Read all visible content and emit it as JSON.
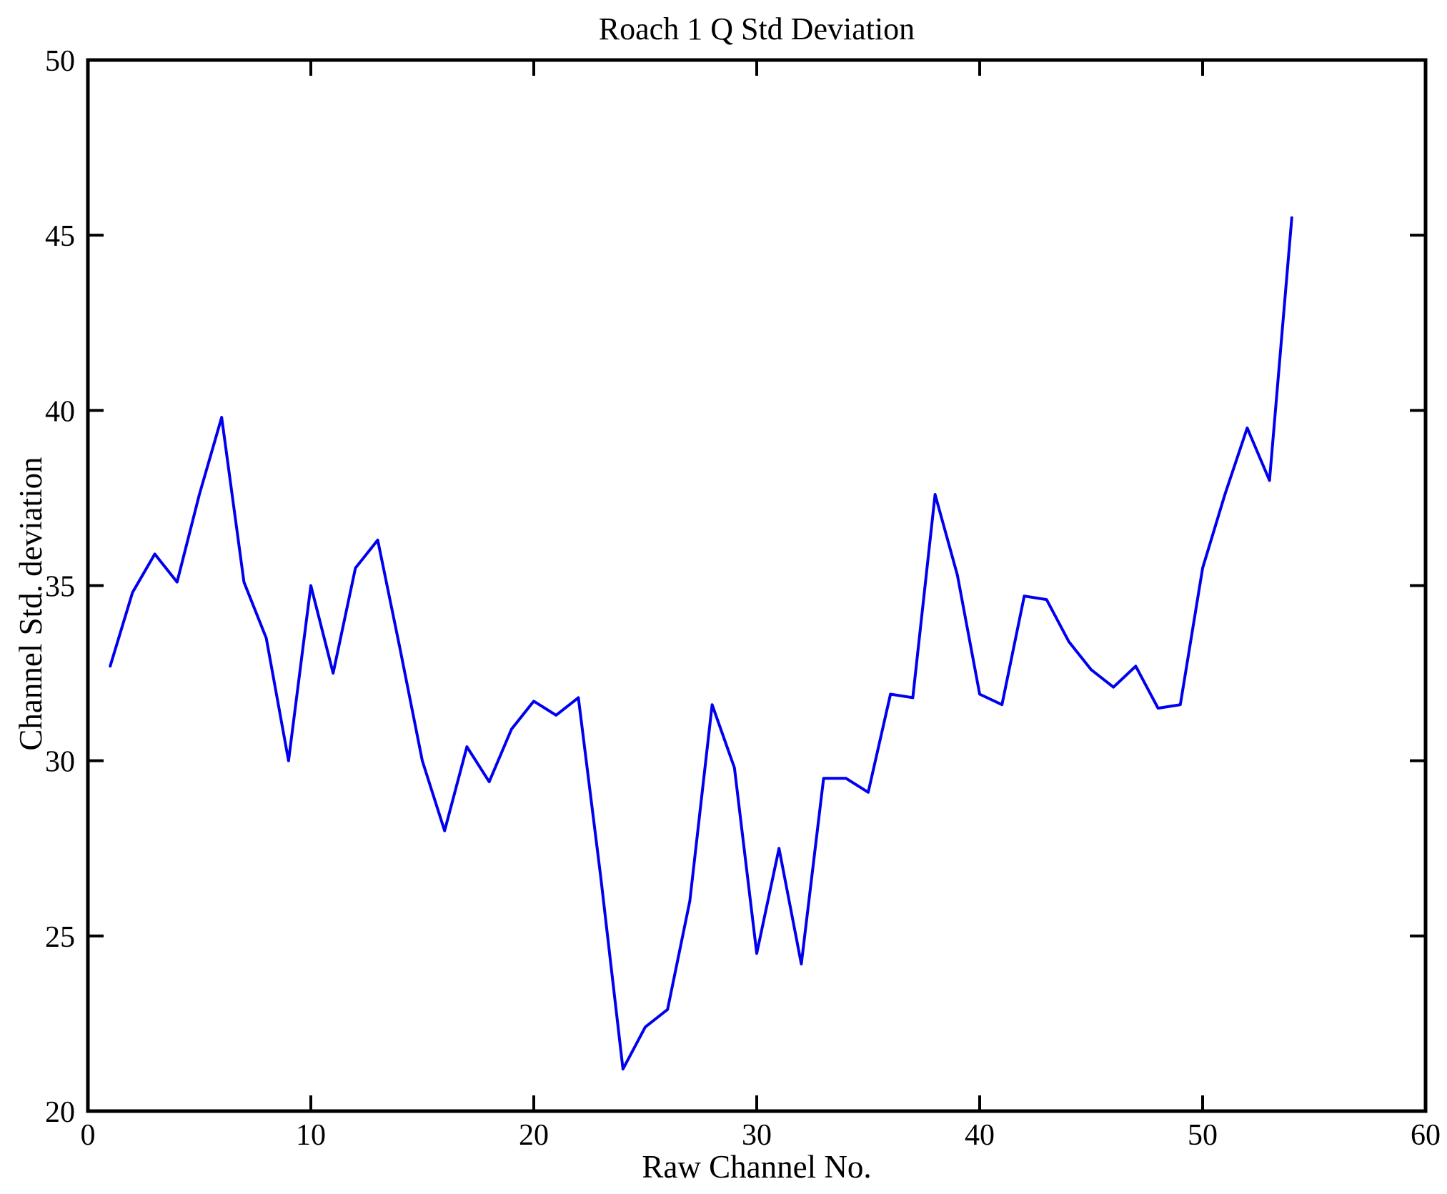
{
  "chart_data": {
    "type": "line",
    "title": "Roach 1 Q Std Deviation",
    "xlabel": "Raw Channel No.",
    "ylabel": "Channel Std. deviation",
    "xlim": [
      0,
      60
    ],
    "ylim": [
      20,
      50
    ],
    "x_ticks": [
      0,
      10,
      20,
      30,
      40,
      50,
      60
    ],
    "y_ticks": [
      20,
      25,
      30,
      35,
      40,
      45,
      50
    ],
    "grid": false,
    "legend": "none",
    "line_color": "#0000EE",
    "axis_color": "#000000",
    "x": [
      1,
      2,
      3,
      4,
      5,
      6,
      7,
      8,
      9,
      10,
      11,
      12,
      13,
      14,
      15,
      16,
      17,
      18,
      19,
      20,
      21,
      22,
      23,
      24,
      25,
      26,
      27,
      28,
      29,
      30,
      31,
      32,
      33,
      34,
      35,
      36,
      37,
      38,
      39,
      40,
      41,
      42,
      43,
      44,
      45,
      46,
      47,
      48,
      49,
      50,
      51,
      52,
      53,
      54
    ],
    "y": [
      32.7,
      34.8,
      35.9,
      35.1,
      37.6,
      39.8,
      35.1,
      33.5,
      30.0,
      35.0,
      32.5,
      35.5,
      36.3,
      33.2,
      30.0,
      28.0,
      30.4,
      29.4,
      30.9,
      31.7,
      31.3,
      31.8,
      26.7,
      21.2,
      22.4,
      22.9,
      26.0,
      31.6,
      29.8,
      24.5,
      27.5,
      24.2,
      29.5,
      29.5,
      29.1,
      31.9,
      31.8,
      37.6,
      35.3,
      31.9,
      31.6,
      34.7,
      34.6,
      33.4,
      32.6,
      32.1,
      32.7,
      31.5,
      31.6,
      35.5,
      37.6,
      39.5,
      38.0,
      45.5
    ]
  }
}
